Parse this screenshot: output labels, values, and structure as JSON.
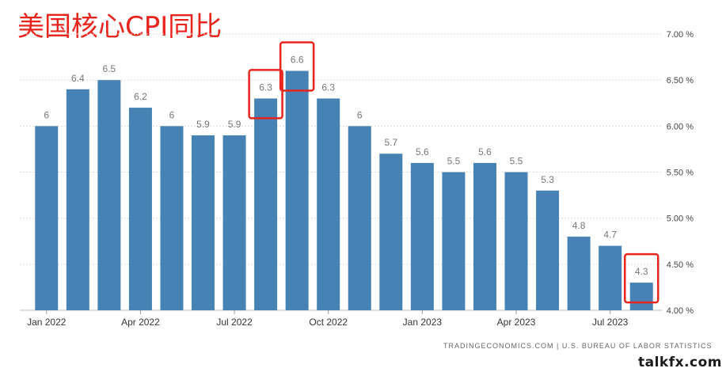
{
  "title": "美国核心CPI同比",
  "source": "TRADINGECONOMICS.COM | U.S. BUREAU OF LABOR STATISTICS",
  "watermark": "talkfx.com",
  "colors": {
    "bar": "#4682b4",
    "highlight_box": "#e8241c",
    "grid": "#dcdcdc",
    "label": "#777777",
    "title": "#e8241c"
  },
  "chart_data": {
    "type": "bar",
    "title": "美国核心CPI同比",
    "categories": [
      "Jan 2022",
      "Feb 2022",
      "Mar 2022",
      "Apr 2022",
      "May 2022",
      "Jun 2022",
      "Jul 2022",
      "Aug 2022",
      "Sep 2022",
      "Oct 2022",
      "Nov 2022",
      "Dec 2022",
      "Jan 2023",
      "Feb 2023",
      "Mar 2023",
      "Apr 2023",
      "May 2023",
      "Jun 2023",
      "Jul 2023",
      "Aug 2023"
    ],
    "values": [
      6,
      6.4,
      6.5,
      6.2,
      6,
      5.9,
      5.9,
      6.3,
      6.6,
      6.3,
      6,
      5.7,
      5.6,
      5.5,
      5.6,
      5.5,
      5.3,
      4.8,
      4.7,
      4.3
    ],
    "data_labels": [
      "6",
      "6.4",
      "6.5",
      "6.2",
      "6",
      "5.9",
      "5.9",
      "6.3",
      "6.6",
      "6.3",
      "6",
      "5.7",
      "5.6",
      "5.5",
      "5.6",
      "5.5",
      "5.3",
      "4.8",
      "4.7",
      "4.3"
    ],
    "x_tick_labels": [
      {
        "index": 0,
        "label": "Jan 2022"
      },
      {
        "index": 3,
        "label": "Apr 2022"
      },
      {
        "index": 6,
        "label": "Jul 2022"
      },
      {
        "index": 9,
        "label": "Oct 2022"
      },
      {
        "index": 12,
        "label": "Jan 2023"
      },
      {
        "index": 15,
        "label": "Apr 2023"
      },
      {
        "index": 18,
        "label": "Jul 2023"
      }
    ],
    "y_ticks": [
      4.0,
      4.5,
      5.0,
      5.5,
      6.0,
      6.5,
      7.0
    ],
    "y_tick_labels": [
      "4.00 %",
      "4.50 %",
      "5.00 %",
      "5.50 %",
      "6.00 %",
      "6.50 %",
      "7.00 %"
    ],
    "ylim": [
      4.0,
      7.0
    ],
    "y_axis_position": "right",
    "grid": true,
    "highlighted_indices": [
      7,
      8,
      19
    ]
  }
}
